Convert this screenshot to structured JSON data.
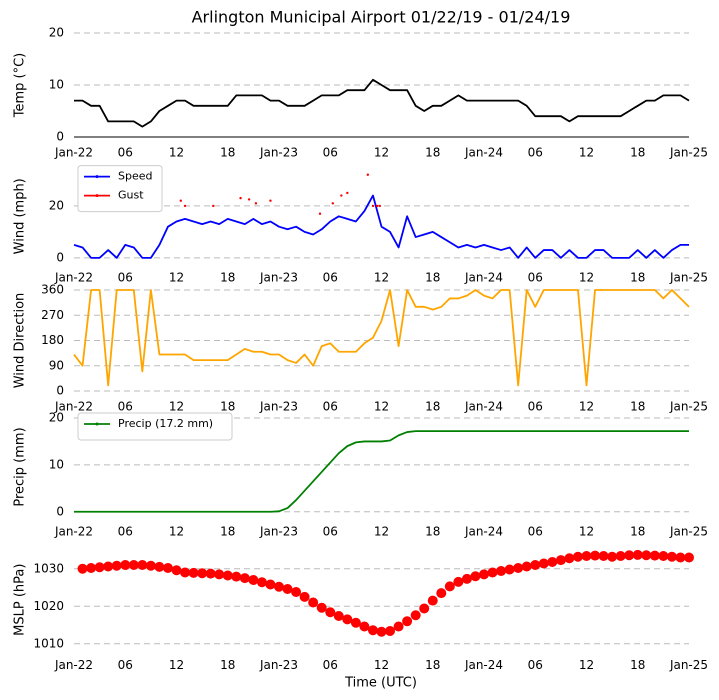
{
  "chart_data": [
    {
      "type": "line",
      "title": "Arlington Municipal Airport 01/22/19 - 01/24/19",
      "ylabel": "Temp (°C)",
      "x": [
        0,
        1,
        2,
        3,
        4,
        5,
        6,
        7,
        8,
        9,
        10,
        11,
        12,
        13,
        14,
        15,
        16,
        17,
        18,
        19,
        20,
        21,
        22,
        23,
        24,
        25,
        26,
        27,
        28,
        29,
        30,
        31,
        32,
        33,
        34,
        35,
        36,
        37,
        38,
        39,
        40,
        41,
        42,
        43,
        44,
        45,
        46,
        47,
        48,
        49,
        50,
        51,
        52,
        53,
        54,
        55,
        56,
        57,
        58,
        59,
        60,
        61,
        62,
        63,
        64,
        65,
        66,
        67,
        68,
        69,
        70,
        71,
        72
      ],
      "series": [
        {
          "color": "#000000",
          "values": [
            7,
            7,
            6,
            6,
            3,
            3,
            3,
            3,
            2,
            3,
            5,
            6,
            7,
            7,
            6,
            6,
            6,
            6,
            6,
            8,
            8,
            8,
            8,
            7,
            7,
            6,
            6,
            6,
            7,
            8,
            8,
            8,
            9,
            9,
            9,
            11,
            10,
            9,
            9,
            9,
            6,
            5,
            6,
            6,
            7,
            8,
            7,
            7,
            7,
            7,
            7,
            7,
            7,
            6,
            4,
            4,
            4,
            4,
            3,
            4,
            4,
            4,
            4,
            4,
            4,
            5,
            6,
            7,
            7,
            8,
            8,
            8,
            7
          ]
        }
      ],
      "xlim": [
        0,
        72
      ],
      "xticks": [
        {
          "value": 0,
          "label": "Jan-22"
        },
        {
          "value": 6,
          "label": "06"
        },
        12,
        18,
        {
          "value": 24,
          "label": "Jan-23"
        },
        {
          "value": 30,
          "label": "06"
        },
        {
          "value": 36,
          "label": "12"
        },
        {
          "value": 42,
          "label": "18"
        },
        {
          "value": 48,
          "label": "Jan-24"
        },
        {
          "value": 54,
          "label": "06"
        },
        {
          "value": 60,
          "label": "12"
        },
        {
          "value": 66,
          "label": "18"
        },
        {
          "value": 72,
          "label": "Jan-25"
        }
      ],
      "ylim": [
        0,
        20
      ],
      "yticks": [
        0,
        10,
        20
      ],
      "grid": true
    },
    {
      "type": "line",
      "ylabel": "Wind (mph)",
      "x": [
        0,
        1,
        2,
        3,
        4,
        5,
        6,
        7,
        8,
        9,
        10,
        11,
        12,
        13,
        14,
        15,
        16,
        17,
        18,
        19,
        20,
        21,
        22,
        23,
        24,
        25,
        26,
        27,
        28,
        29,
        30,
        31,
        32,
        33,
        34,
        35,
        36,
        37,
        38,
        39,
        40,
        41,
        42,
        43,
        44,
        45,
        46,
        47,
        48,
        49,
        50,
        51,
        52,
        53,
        54,
        55,
        56,
        57,
        58,
        59,
        60,
        61,
        62,
        63,
        64,
        65,
        66,
        67,
        68,
        69,
        70,
        71,
        72
      ],
      "series": [
        {
          "name": "Speed",
          "color": "#0000ff",
          "values": [
            5,
            4,
            0,
            0,
            3,
            0,
            5,
            4,
            0,
            0,
            5,
            12,
            14,
            15,
            14,
            13,
            14,
            13,
            15,
            14,
            13,
            15,
            13,
            14,
            12,
            11,
            12,
            10,
            9,
            11,
            14,
            16,
            15,
            14,
            18,
            24,
            12,
            10,
            4,
            16,
            8,
            9,
            10,
            8,
            6,
            4,
            5,
            4,
            5,
            4,
            3,
            4,
            0,
            4,
            0,
            3,
            3,
            0,
            3,
            0,
            0,
            3,
            3,
            0,
            0,
            0,
            3,
            0,
            3,
            0,
            3,
            5,
            5
          ]
        },
        {
          "name": "Gust",
          "color": "#ff0000",
          "markers_only": true,
          "x": [
            12.5,
            13,
            16.3,
            19.5,
            20.5,
            21.3,
            23,
            28.8,
            30.3,
            31.3,
            32,
            34.4,
            35,
            35.5,
            35.8
          ],
          "values": [
            22,
            20,
            20,
            23,
            22.5,
            21,
            22,
            17,
            21,
            24,
            25,
            32,
            20,
            20,
            20
          ]
        }
      ],
      "xlim": [
        0,
        72
      ],
      "xticks": [
        {
          "value": 0,
          "label": "Jan-22"
        },
        {
          "value": 6,
          "label": "06"
        },
        12,
        18,
        {
          "value": 24,
          "label": "Jan-23"
        },
        {
          "value": 30,
          "label": "06"
        },
        {
          "value": 36,
          "label": "12"
        },
        {
          "value": 42,
          "label": "18"
        },
        {
          "value": 48,
          "label": "Jan-24"
        },
        {
          "value": 54,
          "label": "06"
        },
        {
          "value": 60,
          "label": "12"
        },
        {
          "value": 66,
          "label": "18"
        },
        {
          "value": 72,
          "label": "Jan-25"
        }
      ],
      "ylim": [
        -1.6,
        33.6
      ],
      "yticks": [
        0,
        20
      ],
      "grid": true,
      "legend": "upper left"
    },
    {
      "type": "line",
      "ylabel": "Wind Direction",
      "x": [
        0,
        1,
        2,
        3,
        4,
        5,
        6,
        7,
        8,
        9,
        10,
        11,
        12,
        13,
        14,
        15,
        16,
        17,
        18,
        19,
        20,
        21,
        22,
        23,
        24,
        25,
        26,
        27,
        28,
        29,
        30,
        31,
        32,
        33,
        34,
        35,
        36,
        37,
        38,
        39,
        40,
        41,
        42,
        43,
        44,
        45,
        46,
        47,
        48,
        49,
        50,
        51,
        52,
        53,
        54,
        55,
        56,
        57,
        58,
        59,
        60,
        61,
        62,
        63,
        64,
        65,
        66,
        67,
        68,
        69,
        70,
        71,
        72
      ],
      "series": [
        {
          "color": "#ffa500",
          "values": [
            130,
            90,
            360,
            360,
            20,
            360,
            360,
            360,
            70,
            360,
            130,
            130,
            130,
            130,
            110,
            110,
            110,
            110,
            110,
            130,
            150,
            140,
            140,
            130,
            130,
            110,
            100,
            130,
            90,
            160,
            170,
            140,
            140,
            140,
            170,
            190,
            250,
            360,
            160,
            360,
            300,
            300,
            290,
            300,
            330,
            330,
            340,
            360,
            340,
            330,
            360,
            360,
            20,
            360,
            300,
            360,
            360,
            360,
            360,
            360,
            20,
            360,
            360,
            360,
            360,
            360,
            360,
            360,
            360,
            330,
            360,
            330,
            300
          ]
        }
      ],
      "xlim": [
        0,
        72
      ],
      "xticks": [
        {
          "value": 0,
          "label": "Jan-22"
        },
        {
          "value": 6,
          "label": "06"
        },
        12,
        18,
        {
          "value": 24,
          "label": "Jan-23"
        },
        {
          "value": 30,
          "label": "06"
        },
        {
          "value": 36,
          "label": "12"
        },
        {
          "value": 42,
          "label": "18"
        },
        {
          "value": 48,
          "label": "Jan-24"
        },
        {
          "value": 54,
          "label": "06"
        },
        {
          "value": 60,
          "label": "12"
        },
        {
          "value": 66,
          "label": "18"
        },
        {
          "value": 72,
          "label": "Jan-25"
        }
      ],
      "ylim": [
        0,
        360
      ],
      "yticks": [
        0,
        90,
        180,
        270,
        360
      ],
      "grid": true
    },
    {
      "type": "line",
      "ylabel": "Precip (mm)",
      "x": [
        0,
        1,
        2,
        3,
        4,
        5,
        6,
        7,
        8,
        9,
        10,
        11,
        12,
        13,
        14,
        15,
        16,
        17,
        18,
        19,
        20,
        21,
        22,
        23,
        24,
        25,
        26,
        27,
        28,
        29,
        30,
        31,
        32,
        33,
        34,
        35,
        36,
        37,
        38,
        39,
        40,
        41,
        42,
        43,
        44,
        45,
        46,
        47,
        48,
        49,
        50,
        51,
        52,
        53,
        54,
        55,
        56,
        57,
        58,
        59,
        60,
        61,
        62,
        63,
        64,
        65,
        66,
        67,
        68,
        69,
        70,
        71,
        72
      ],
      "series": [
        {
          "name": "Precip (17.2 mm)",
          "color": "#008000",
          "values": [
            0,
            0,
            0,
            0,
            0,
            0,
            0,
            0,
            0,
            0,
            0,
            0,
            0,
            0,
            0,
            0,
            0,
            0,
            0,
            0,
            0,
            0,
            0,
            0,
            0.1,
            0.8,
            2.5,
            4.5,
            6.5,
            8.5,
            10.5,
            12.5,
            14,
            14.8,
            15,
            15,
            15,
            15.2,
            16.3,
            17,
            17.2,
            17.2,
            17.2,
            17.2,
            17.2,
            17.2,
            17.2,
            17.2,
            17.2,
            17.2,
            17.2,
            17.2,
            17.2,
            17.2,
            17.2,
            17.2,
            17.2,
            17.2,
            17.2,
            17.2,
            17.2,
            17.2,
            17.2,
            17.2,
            17.2,
            17.2,
            17.2,
            17.2,
            17.2,
            17.2,
            17.2,
            17.2,
            17.2
          ]
        }
      ],
      "xlim": [
        0,
        72
      ],
      "xticks": [
        {
          "value": 0,
          "label": "Jan-22"
        },
        {
          "value": 6,
          "label": "06"
        },
        12,
        18,
        {
          "value": 24,
          "label": "Jan-23"
        },
        {
          "value": 30,
          "label": "06"
        },
        {
          "value": 36,
          "label": "12"
        },
        {
          "value": 42,
          "label": "18"
        },
        {
          "value": 48,
          "label": "Jan-24"
        },
        {
          "value": 54,
          "label": "06"
        },
        {
          "value": 60,
          "label": "12"
        },
        {
          "value": 66,
          "label": "18"
        },
        {
          "value": 72,
          "label": "Jan-25"
        }
      ],
      "ylim": [
        -0.9,
        20
      ],
      "yticks": [
        0,
        10,
        20
      ],
      "grid": true,
      "legend": "upper left"
    },
    {
      "type": "scatter",
      "ylabel": "MSLP (hPa)",
      "xlabel": "Time (UTC)",
      "x": [
        1,
        2,
        3,
        4,
        5,
        6,
        7,
        8,
        9,
        10,
        11,
        12,
        13,
        14,
        15,
        16,
        17,
        18,
        19,
        20,
        21,
        22,
        23,
        24,
        25,
        26,
        27,
        28,
        29,
        30,
        31,
        32,
        33,
        34,
        35,
        36,
        37,
        38,
        39,
        40,
        41,
        42,
        43,
        44,
        45,
        46,
        47,
        48,
        49,
        50,
        51,
        52,
        53,
        54,
        55,
        56,
        57,
        58,
        59,
        60,
        61,
        62,
        63,
        64,
        65,
        66,
        67,
        68,
        69,
        70,
        71,
        72
      ],
      "series": [
        {
          "color": "#ff0000",
          "values": [
            1030,
            1030.2,
            1030.4,
            1030.6,
            1030.8,
            1031,
            1031,
            1031,
            1030.8,
            1030.5,
            1030.2,
            1029.6,
            1029,
            1028.9,
            1028.8,
            1028.7,
            1028.5,
            1028.2,
            1027.9,
            1027.5,
            1027,
            1026.4,
            1025.8,
            1025.2,
            1024.6,
            1023.8,
            1022.5,
            1021,
            1019.6,
            1018.4,
            1017.4,
            1016.5,
            1015.6,
            1014.6,
            1013.6,
            1013.2,
            1013.4,
            1014.6,
            1016,
            1017.6,
            1019.4,
            1021.5,
            1023.5,
            1025.3,
            1026.5,
            1027.3,
            1028,
            1028.5,
            1029,
            1029.4,
            1029.8,
            1030.2,
            1030.6,
            1031,
            1031.4,
            1031.8,
            1032.3,
            1032.8,
            1033.2,
            1033.4,
            1033.5,
            1033.4,
            1033.2,
            1033.4,
            1033.6,
            1033.7,
            1033.6,
            1033.5,
            1033.4,
            1033.2,
            1033,
            1033
          ]
        }
      ],
      "xlim": [
        0,
        72
      ],
      "xticks": [
        {
          "value": 0,
          "label": "Jan-22"
        },
        {
          "value": 6,
          "label": "06"
        },
        12,
        18,
        {
          "value": 24,
          "label": "Jan-23"
        },
        {
          "value": 30,
          "label": "06"
        },
        {
          "value": 36,
          "label": "12"
        },
        {
          "value": 42,
          "label": "18"
        },
        {
          "value": 48,
          "label": "Jan-24"
        },
        {
          "value": 54,
          "label": "06"
        },
        {
          "value": 60,
          "label": "12"
        },
        {
          "value": 66,
          "label": "18"
        },
        {
          "value": 72,
          "label": "Jan-25"
        }
      ],
      "ylim": [
        1008.5,
        1035
      ],
      "yticks": [
        1010,
        1020,
        1030
      ],
      "grid": true
    }
  ]
}
